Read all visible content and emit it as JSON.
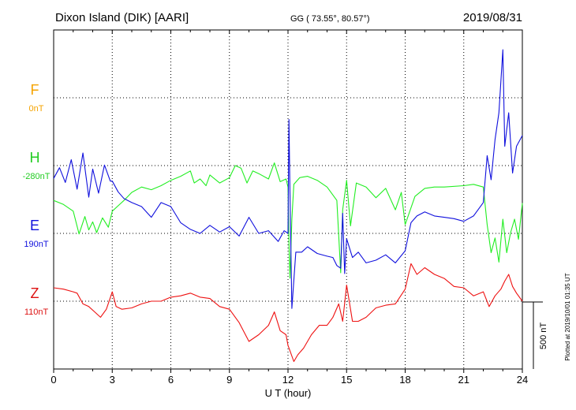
{
  "header": {
    "station": "Dixon Island (DIK)  [AARI]",
    "coords": "GG ( 73.55°,  80.57°)",
    "date": "2019/08/31"
  },
  "plotted_note": "Plotted at 2019/10/01 01:35 UT",
  "scale_label": "500 nT",
  "chart_data": {
    "type": "line",
    "title": "",
    "xlabel": "U T (hour)",
    "ylabel": "",
    "xlim": [
      0,
      24
    ],
    "x_ticks": [
      "0",
      "3",
      "6",
      "9",
      "12",
      "15",
      "18",
      "21",
      "24"
    ],
    "grid": true,
    "series": [
      {
        "name": "F",
        "baseline_label": "0nT",
        "color": "#f5a300",
        "name_color": "#f5a300",
        "x": [],
        "y": []
      },
      {
        "name": "H",
        "baseline_label": "-280nT",
        "color": "#22ee22",
        "name_color": "#22cc22",
        "x": [
          0,
          0.5,
          1.0,
          1.3,
          1.6,
          1.8,
          2.0,
          2.2,
          2.5,
          2.8,
          3.0,
          3.3,
          3.6,
          4.0,
          4.5,
          5.0,
          5.5,
          6.0,
          6.5,
          7.0,
          7.2,
          7.5,
          7.8,
          8.0,
          8.5,
          9.0,
          9.3,
          9.6,
          9.9,
          10.2,
          10.5,
          11.0,
          11.3,
          11.6,
          11.9,
          12.0,
          12.05,
          12.1,
          12.2,
          12.3,
          12.6,
          13.0,
          13.5,
          14.0,
          14.5,
          14.7,
          14.8,
          15.0,
          15.2,
          15.5,
          16.0,
          16.5,
          17.0,
          17.5,
          17.8,
          18.0,
          18.5,
          19.0,
          19.5,
          20.0,
          21.0,
          21.5,
          22.0,
          22.2,
          22.4,
          22.6,
          22.8,
          23.0,
          23.2,
          23.4,
          23.6,
          23.8,
          24.0
        ],
        "y": [
          -260,
          -290,
          -340,
          -510,
          -380,
          -480,
          -420,
          -500,
          -390,
          -460,
          -340,
          -300,
          -260,
          -200,
          -160,
          -180,
          -150,
          -110,
          -80,
          -40,
          -130,
          -100,
          -150,
          -70,
          -130,
          -90,
          0,
          -20,
          -130,
          -40,
          -60,
          -100,
          20,
          -120,
          -100,
          -160,
          -570,
          -840,
          -400,
          -140,
          -90,
          -80,
          -110,
          -160,
          -260,
          -800,
          -330,
          -110,
          -450,
          -130,
          -160,
          -240,
          -170,
          -330,
          -200,
          -440,
          -230,
          -170,
          -160,
          -160,
          -150,
          -140,
          -160,
          -440,
          -650,
          -540,
          -720,
          -400,
          -650,
          -500,
          -400,
          -550,
          -280
        ]
      },
      {
        "name": "E",
        "baseline_label": "190nT",
        "color": "#1010dd",
        "name_color": "#1010dd",
        "x": [
          0,
          0.3,
          0.6,
          0.9,
          1.2,
          1.5,
          1.8,
          2.0,
          2.3,
          2.6,
          2.9,
          3.0,
          3.3,
          3.6,
          4.0,
          4.5,
          5.0,
          5.5,
          6.0,
          6.5,
          7.0,
          7.5,
          8.0,
          8.5,
          9.0,
          9.5,
          10.0,
          10.5,
          11.0,
          11.5,
          11.8,
          12.0,
          12.05,
          12.1,
          12.2,
          12.4,
          12.7,
          13.0,
          13.5,
          14.0,
          14.3,
          14.5,
          14.7,
          14.8,
          14.9,
          15.0,
          15.3,
          15.6,
          16.0,
          16.5,
          17.0,
          17.5,
          18.0,
          18.3,
          18.6,
          19.0,
          19.5,
          20.0,
          20.5,
          21.0,
          21.5,
          22.0,
          22.2,
          22.4,
          22.6,
          22.8,
          23.0,
          23.1,
          23.3,
          23.5,
          23.7,
          24.0
        ],
        "y": [
          410,
          490,
          380,
          550,
          330,
          600,
          270,
          480,
          300,
          510,
          390,
          390,
          310,
          260,
          230,
          200,
          120,
          230,
          200,
          80,
          30,
          0,
          60,
          10,
          50,
          -20,
          120,
          0,
          20,
          -60,
          20,
          0,
          850,
          300,
          -560,
          -140,
          -140,
          -100,
          -150,
          -170,
          -180,
          -240,
          -260,
          150,
          -300,
          -40,
          -180,
          -140,
          -220,
          -200,
          -160,
          -220,
          -130,
          80,
          130,
          160,
          130,
          120,
          110,
          90,
          130,
          230,
          580,
          400,
          700,
          900,
          1370,
          650,
          900,
          450,
          650,
          730
        ]
      },
      {
        "name": "Z",
        "baseline_label": "110nT",
        "color": "#ee1111",
        "name_color": "#dd1111",
        "x": [
          0,
          0.5,
          1.0,
          1.2,
          1.5,
          1.8,
          2.1,
          2.4,
          2.7,
          3.0,
          3.2,
          3.5,
          4.0,
          4.5,
          5.0,
          5.5,
          6.0,
          6.5,
          7.0,
          7.5,
          8.0,
          8.5,
          9.0,
          9.5,
          10.0,
          10.5,
          11.0,
          11.3,
          11.6,
          11.9,
          12.0,
          12.1,
          12.3,
          12.5,
          12.8,
          13.2,
          13.6,
          14.0,
          14.3,
          14.6,
          14.8,
          15.0,
          15.3,
          15.6,
          16.0,
          16.5,
          17.0,
          17.5,
          18.0,
          18.3,
          18.6,
          19.0,
          19.5,
          20.0,
          20.5,
          21.0,
          21.5,
          22.0,
          22.3,
          22.6,
          22.9,
          23.1,
          23.3,
          23.5,
          23.7,
          24.0
        ],
        "y": [
          100,
          90,
          70,
          60,
          -20,
          -40,
          -80,
          -120,
          -60,
          70,
          -40,
          -60,
          -50,
          -20,
          0,
          0,
          30,
          40,
          60,
          30,
          20,
          -40,
          -60,
          -160,
          -300,
          -250,
          -180,
          -80,
          -220,
          -250,
          -330,
          -370,
          -450,
          -400,
          -350,
          -250,
          -180,
          -180,
          -120,
          -20,
          -150,
          120,
          -150,
          -150,
          -120,
          -50,
          -30,
          -20,
          90,
          280,
          200,
          250,
          200,
          170,
          110,
          100,
          40,
          70,
          -40,
          40,
          90,
          150,
          200,
          110,
          60,
          0
        ]
      }
    ]
  }
}
